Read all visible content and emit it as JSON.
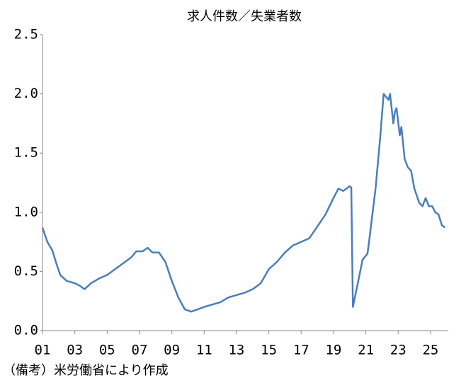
{
  "chart_data": {
    "type": "line",
    "title": "求人件数／失業者数",
    "note": "（備考）米労働省により作成",
    "x": [
      2001.0,
      2001.3,
      2001.6,
      2001.9,
      2002.1,
      2002.5,
      2003.0,
      2003.3,
      2003.6,
      2004.0,
      2004.5,
      2005.0,
      2005.5,
      2006.0,
      2006.5,
      2006.8,
      2007.2,
      2007.5,
      2007.8,
      2008.2,
      2008.6,
      2009.0,
      2009.4,
      2009.8,
      2010.2,
      2010.6,
      2011.0,
      2011.5,
      2012.0,
      2012.5,
      2013.0,
      2013.5,
      2014.0,
      2014.5,
      2015.0,
      2015.5,
      2016.0,
      2016.5,
      2017.0,
      2017.5,
      2018.0,
      2018.5,
      2019.0,
      2019.3,
      2019.6,
      2020.0,
      2020.1,
      2020.2,
      2020.5,
      2020.8,
      2021.1,
      2021.2,
      2021.6,
      2021.9,
      2022.1,
      2022.4,
      2022.5,
      2022.7,
      2022.8,
      2022.9,
      2023.1,
      2023.2,
      2023.4,
      2023.6,
      2023.8,
      2024.0,
      2024.3,
      2024.5,
      2024.7,
      2024.9,
      2025.1,
      2025.3,
      2025.5,
      2025.7,
      2025.9
    ],
    "series": [
      {
        "name": "求人件数／失業者数",
        "color": "#4a7ebb",
        "values": [
          0.87,
          0.75,
          0.68,
          0.55,
          0.47,
          0.42,
          0.4,
          0.38,
          0.35,
          0.4,
          0.44,
          0.47,
          0.52,
          0.57,
          0.62,
          0.67,
          0.67,
          0.7,
          0.66,
          0.66,
          0.58,
          0.42,
          0.28,
          0.18,
          0.16,
          0.18,
          0.2,
          0.22,
          0.24,
          0.28,
          0.3,
          0.32,
          0.35,
          0.4,
          0.52,
          0.58,
          0.66,
          0.72,
          0.75,
          0.78,
          0.88,
          0.98,
          1.12,
          1.2,
          1.18,
          1.22,
          1.21,
          0.2,
          0.4,
          0.6,
          0.65,
          0.75,
          1.2,
          1.65,
          2.0,
          1.95,
          2.0,
          1.75,
          1.85,
          1.88,
          1.65,
          1.72,
          1.45,
          1.38,
          1.35,
          1.2,
          1.08,
          1.05,
          1.12,
          1.05,
          1.05,
          1.0,
          0.98,
          0.89,
          0.87
        ]
      }
    ],
    "xlim": [
      2001,
      2026.1
    ],
    "xticks": [
      {
        "value": 2001,
        "label": "01"
      },
      {
        "value": 2003,
        "label": "03"
      },
      {
        "value": 2005,
        "label": "05"
      },
      {
        "value": 2007,
        "label": "07"
      },
      {
        "value": 2009,
        "label": "09"
      },
      {
        "value": 2011,
        "label": "11"
      },
      {
        "value": 2013,
        "label": "13"
      },
      {
        "value": 2015,
        "label": "15"
      },
      {
        "value": 2017,
        "label": "17"
      },
      {
        "value": 2019,
        "label": "19"
      },
      {
        "value": 2021,
        "label": "21"
      },
      {
        "value": 2023,
        "label": "23"
      },
      {
        "value": 2025,
        "label": "25"
      }
    ],
    "ylim": [
      0,
      2.5
    ],
    "yticks": [
      {
        "value": 0,
        "label": "0.0"
      },
      {
        "value": 0.5,
        "label": "0.5"
      },
      {
        "value": 1,
        "label": "1.0"
      },
      {
        "value": 1.5,
        "label": "1.5"
      },
      {
        "value": 2,
        "label": "2.0"
      },
      {
        "value": 2.5,
        "label": "2.5"
      }
    ],
    "grid": false
  }
}
